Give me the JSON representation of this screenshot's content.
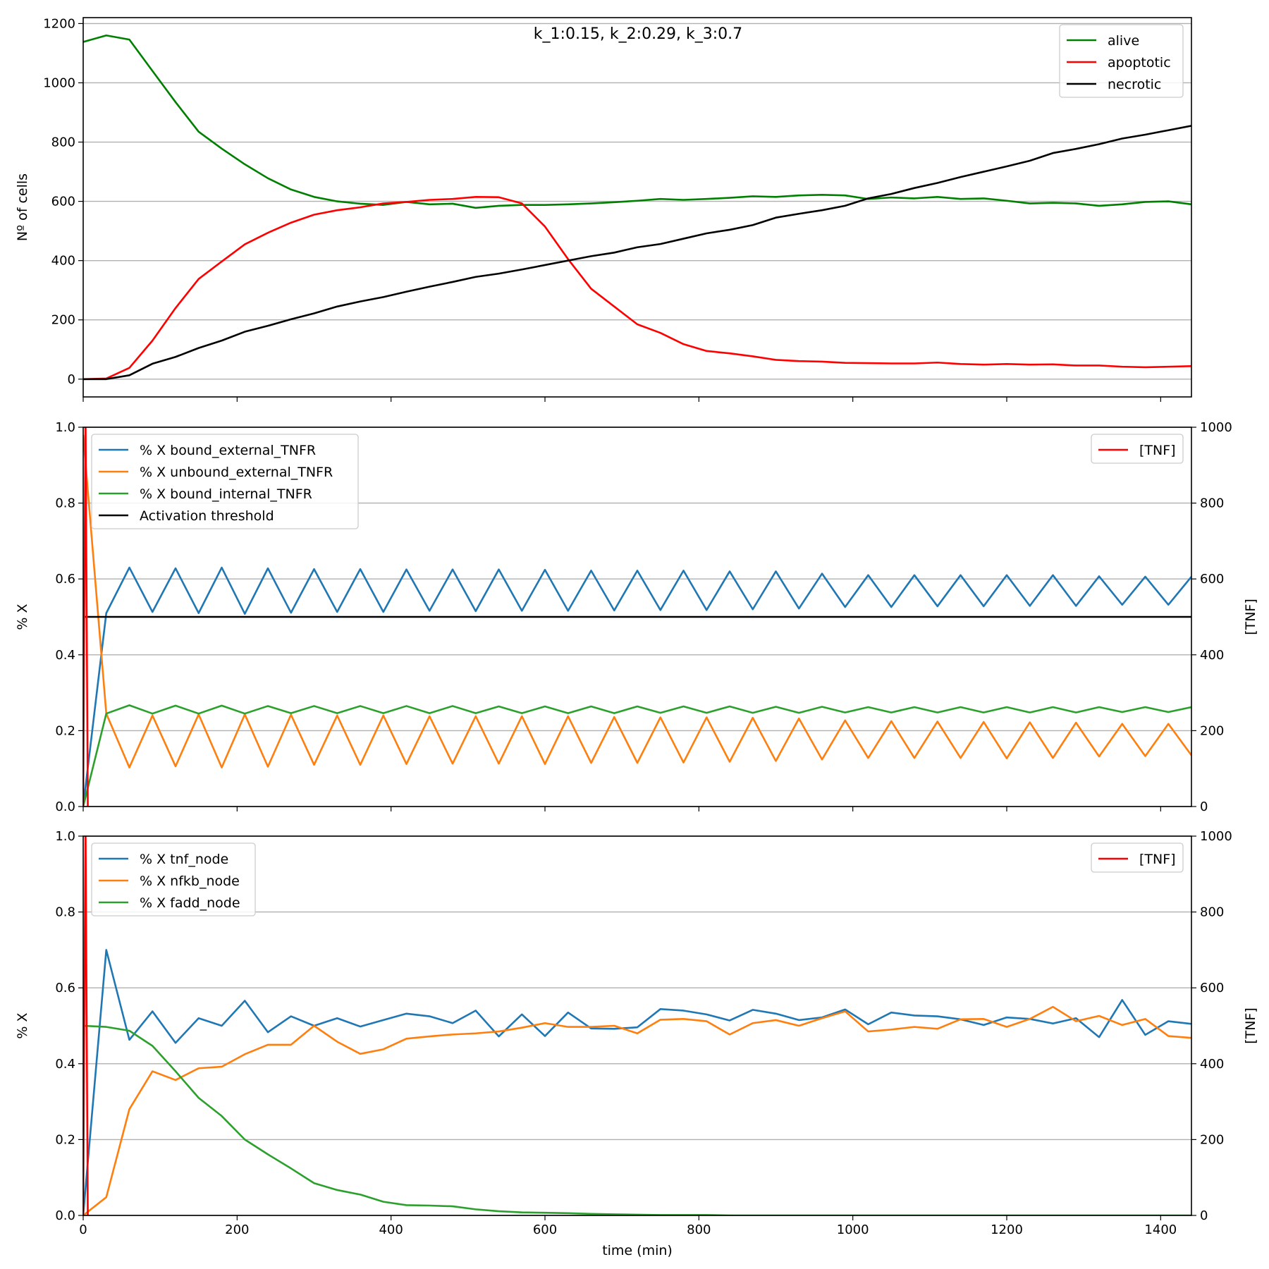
{
  "chart_data": [
    {
      "type": "line",
      "title": "k_1:0.15, k_2:0.29, k_3:0.7",
      "xlabel": "",
      "ylabel": "Nº of cells",
      "xlim": [
        0,
        1440
      ],
      "ylim": [
        -60,
        1220
      ],
      "x_ticks": [
        "0",
        "200",
        "400",
        "600",
        "800",
        "1000",
        "1200",
        "1400"
      ],
      "x_tick_labels_shown": false,
      "y_ticks": [
        "0",
        "200",
        "400",
        "600",
        "800",
        "1000",
        "1200"
      ],
      "grid": "y",
      "legend_position": "top-right",
      "x": [
        0,
        30,
        60,
        90,
        120,
        150,
        180,
        210,
        240,
        270,
        300,
        330,
        360,
        390,
        420,
        450,
        480,
        510,
        540,
        570,
        600,
        630,
        660,
        690,
        720,
        750,
        780,
        810,
        840,
        870,
        900,
        930,
        960,
        990,
        1020,
        1050,
        1080,
        1110,
        1140,
        1170,
        1200,
        1230,
        1260,
        1290,
        1320,
        1350,
        1380,
        1410,
        1440
      ],
      "series": [
        {
          "name": "alive",
          "color": "#008000",
          "values": [
            1138,
            1160,
            1146,
            1040,
            935,
            835,
            778,
            725,
            678,
            640,
            615,
            600,
            592,
            588,
            598,
            590,
            592,
            578,
            585,
            588,
            588,
            590,
            593,
            597,
            602,
            608,
            605,
            608,
            612,
            617,
            615,
            620,
            622,
            620,
            608,
            613,
            610,
            615,
            608,
            610,
            602,
            593,
            595,
            593,
            585,
            590,
            598,
            600,
            590
          ]
        },
        {
          "name": "apoptotic",
          "color": "#ff0000",
          "values": [
            0,
            2,
            38,
            130,
            240,
            338,
            397,
            455,
            494,
            528,
            555,
            570,
            580,
            593,
            598,
            605,
            608,
            615,
            614,
            593,
            515,
            405,
            305,
            245,
            185,
            156,
            118,
            95,
            87,
            77,
            65,
            61,
            59,
            55,
            54,
            53,
            53,
            56,
            51,
            49,
            51,
            49,
            50,
            46,
            46,
            42,
            40,
            42,
            44
          ]
        },
        {
          "name": "necrotic",
          "color": "#000000",
          "values": [
            0,
            0,
            13,
            52,
            75,
            105,
            130,
            160,
            180,
            202,
            222,
            245,
            262,
            277,
            295,
            312,
            328,
            345,
            356,
            370,
            385,
            400,
            415,
            427,
            445,
            456,
            474,
            492,
            504,
            520,
            545,
            558,
            570,
            585,
            610,
            625,
            645,
            662,
            682,
            700,
            718,
            737,
            763,
            777,
            793,
            812,
            825,
            840,
            855
          ]
        }
      ]
    },
    {
      "type": "line",
      "title": "",
      "xlabel": "",
      "ylabel": "% X",
      "y2label": "[TNF]",
      "xlim": [
        0,
        1440
      ],
      "ylim": [
        0,
        1
      ],
      "y2lim": [
        0,
        1000
      ],
      "x_ticks": [
        "0",
        "200",
        "400",
        "600",
        "800",
        "1000",
        "1200",
        "1400"
      ],
      "x_tick_labels_shown": false,
      "y_ticks": [
        "0.0",
        "0.2",
        "0.4",
        "0.6",
        "0.8",
        "1.0"
      ],
      "y2_ticks": [
        "0",
        "200",
        "400",
        "600",
        "800",
        "1000"
      ],
      "grid": "y",
      "legend_position": "top-left",
      "legend2_position": "top-right",
      "x": [
        0,
        30,
        60,
        90,
        120,
        150,
        180,
        210,
        240,
        270,
        300,
        330,
        360,
        390,
        420,
        450,
        480,
        510,
        540,
        570,
        600,
        630,
        660,
        690,
        720,
        750,
        780,
        810,
        840,
        870,
        900,
        930,
        960,
        990,
        1020,
        1050,
        1080,
        1110,
        1140,
        1170,
        1200,
        1230,
        1260,
        1290,
        1320,
        1350,
        1380,
        1410,
        1440
      ],
      "series": [
        {
          "name": "% X bound_external_TNFR",
          "color": "#1f77b4",
          "values": [
            0,
            0.51,
            0.63,
            0.513,
            0.628,
            0.51,
            0.63,
            0.508,
            0.628,
            0.511,
            0.626,
            0.513,
            0.626,
            0.513,
            0.625,
            0.516,
            0.625,
            0.515,
            0.625,
            0.516,
            0.624,
            0.516,
            0.622,
            0.517,
            0.622,
            0.518,
            0.622,
            0.518,
            0.62,
            0.52,
            0.62,
            0.522,
            0.614,
            0.526,
            0.61,
            0.526,
            0.61,
            0.528,
            0.61,
            0.528,
            0.61,
            0.529,
            0.61,
            0.529,
            0.607,
            0.532,
            0.606,
            0.532,
            0.606
          ]
        },
        {
          "name": "% X unbound_external_TNFR",
          "color": "#ff7f0e",
          "values": [
            0.98,
            0.245,
            0.103,
            0.24,
            0.106,
            0.243,
            0.103,
            0.243,
            0.105,
            0.242,
            0.11,
            0.24,
            0.11,
            0.24,
            0.112,
            0.238,
            0.113,
            0.238,
            0.113,
            0.238,
            0.112,
            0.238,
            0.115,
            0.236,
            0.115,
            0.235,
            0.116,
            0.235,
            0.118,
            0.234,
            0.12,
            0.232,
            0.124,
            0.227,
            0.128,
            0.225,
            0.128,
            0.224,
            0.128,
            0.223,
            0.127,
            0.222,
            0.128,
            0.221,
            0.132,
            0.218,
            0.133,
            0.218,
            0.135
          ]
        },
        {
          "name": "% X bound_internal_TNFR",
          "color": "#2ca02c",
          "values": [
            0,
            0.245,
            0.267,
            0.245,
            0.266,
            0.245,
            0.266,
            0.245,
            0.265,
            0.246,
            0.265,
            0.246,
            0.265,
            0.246,
            0.265,
            0.246,
            0.265,
            0.246,
            0.264,
            0.246,
            0.264,
            0.246,
            0.264,
            0.246,
            0.264,
            0.247,
            0.264,
            0.247,
            0.264,
            0.247,
            0.263,
            0.247,
            0.263,
            0.248,
            0.262,
            0.248,
            0.262,
            0.248,
            0.262,
            0.248,
            0.262,
            0.248,
            0.262,
            0.248,
            0.262,
            0.249,
            0.262,
            0.249,
            0.262
          ]
        },
        {
          "name": "Activation threshold",
          "color": "#000000",
          "values": [
            0.5,
            0.5,
            0.5,
            0.5,
            0.5,
            0.5,
            0.5,
            0.5,
            0.5,
            0.5,
            0.5,
            0.5,
            0.5,
            0.5,
            0.5,
            0.5,
            0.5,
            0.5,
            0.5,
            0.5,
            0.5,
            0.5,
            0.5,
            0.5,
            0.5,
            0.5,
            0.5,
            0.5,
            0.5,
            0.5,
            0.5,
            0.5,
            0.5,
            0.5,
            0.5,
            0.5,
            0.5,
            0.5,
            0.5,
            0.5,
            0.5,
            0.5,
            0.5,
            0.5,
            0.5,
            0.5,
            0.5,
            0.5,
            0.5
          ]
        }
      ],
      "secondary_series": [
        {
          "name": "[TNF]",
          "color": "#ff0000",
          "x": [
            0,
            3,
            6
          ],
          "values": [
            0,
            1050,
            0
          ]
        }
      ]
    },
    {
      "type": "line",
      "title": "",
      "xlabel": "time (min)",
      "ylabel": "% X",
      "y2label": "[TNF]",
      "xlim": [
        0,
        1440
      ],
      "ylim": [
        0,
        1
      ],
      "y2lim": [
        0,
        1000
      ],
      "x_ticks": [
        "0",
        "200",
        "400",
        "600",
        "800",
        "1000",
        "1200",
        "1400"
      ],
      "x_tick_labels_shown": true,
      "y_ticks": [
        "0.0",
        "0.2",
        "0.4",
        "0.6",
        "0.8",
        "1.0"
      ],
      "y2_ticks": [
        "0",
        "200",
        "400",
        "600",
        "800",
        "1000"
      ],
      "grid": "y",
      "legend_position": "top-left",
      "legend2_position": "top-right",
      "x": [
        0,
        30,
        60,
        90,
        120,
        150,
        180,
        210,
        240,
        270,
        300,
        330,
        360,
        390,
        420,
        450,
        480,
        510,
        540,
        570,
        600,
        630,
        660,
        690,
        720,
        750,
        780,
        810,
        840,
        870,
        900,
        930,
        960,
        990,
        1020,
        1050,
        1080,
        1110,
        1140,
        1170,
        1200,
        1230,
        1260,
        1290,
        1320,
        1350,
        1380,
        1410,
        1440
      ],
      "series": [
        {
          "name": "% X tnf_node",
          "color": "#1f77b4",
          "values": [
            0,
            0.7,
            0.463,
            0.538,
            0.455,
            0.52,
            0.5,
            0.566,
            0.483,
            0.525,
            0.5,
            0.52,
            0.498,
            0.515,
            0.532,
            0.525,
            0.507,
            0.54,
            0.472,
            0.53,
            0.473,
            0.535,
            0.493,
            0.492,
            0.496,
            0.544,
            0.54,
            0.53,
            0.514,
            0.542,
            0.532,
            0.515,
            0.522,
            0.543,
            0.504,
            0.535,
            0.527,
            0.525,
            0.517,
            0.502,
            0.522,
            0.518,
            0.506,
            0.52,
            0.47,
            0.568,
            0.476,
            0.512,
            0.505
          ]
        },
        {
          "name": "% X nfkb_node",
          "color": "#ff7f0e",
          "values": [
            0,
            0.048,
            0.28,
            0.38,
            0.357,
            0.388,
            0.392,
            0.425,
            0.45,
            0.45,
            0.5,
            0.458,
            0.426,
            0.438,
            0.466,
            0.472,
            0.477,
            0.48,
            0.485,
            0.495,
            0.507,
            0.497,
            0.497,
            0.5,
            0.48,
            0.516,
            0.518,
            0.512,
            0.477,
            0.507,
            0.515,
            0.5,
            0.52,
            0.538,
            0.485,
            0.49,
            0.497,
            0.492,
            0.517,
            0.518,
            0.497,
            0.518,
            0.55,
            0.512,
            0.526,
            0.502,
            0.518,
            0.473,
            0.468
          ]
        },
        {
          "name": "% X fadd_node",
          "color": "#2ca02c",
          "values": [
            0.5,
            0.497,
            0.487,
            0.447,
            0.38,
            0.31,
            0.262,
            0.2,
            0.161,
            0.124,
            0.085,
            0.067,
            0.055,
            0.036,
            0.027,
            0.026,
            0.024,
            0.016,
            0.011,
            0.008,
            0.007,
            0.006,
            0.004,
            0.003,
            0.002,
            0.001,
            0.001,
            0.001,
            0,
            0,
            0,
            0,
            0,
            0,
            0,
            0,
            0,
            0,
            0,
            0,
            0,
            0,
            0,
            0,
            0,
            0,
            0,
            0,
            0
          ]
        }
      ],
      "secondary_series": [
        {
          "name": "[TNF]",
          "color": "#ff0000",
          "x": [
            0,
            3,
            6
          ],
          "values": [
            0,
            1050,
            0
          ]
        }
      ]
    }
  ]
}
